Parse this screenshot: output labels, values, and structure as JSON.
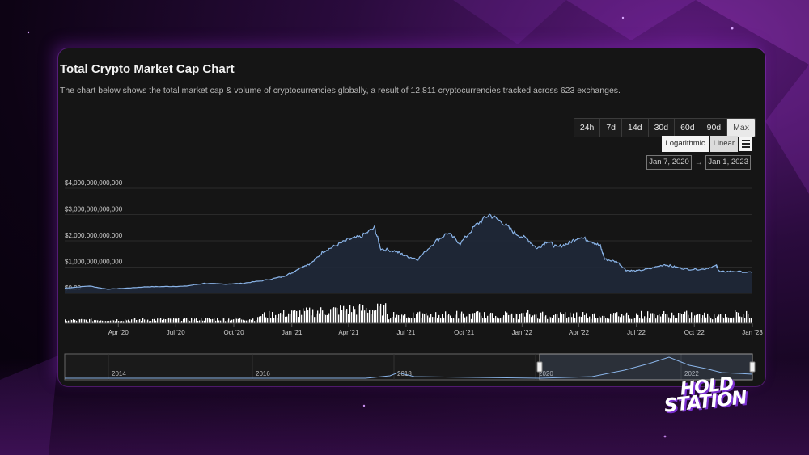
{
  "header": {
    "title": "Total Crypto Market Cap Chart",
    "subtitle": "The chart below shows the total market cap & volume of cryptocurrencies globally, a result of 12,811 cryptocurrencies tracked across 623 exchanges."
  },
  "range_buttons": [
    {
      "label": "24h",
      "active": false
    },
    {
      "label": "7d",
      "active": false
    },
    {
      "label": "14d",
      "active": false
    },
    {
      "label": "30d",
      "active": false
    },
    {
      "label": "60d",
      "active": false
    },
    {
      "label": "90d",
      "active": false
    },
    {
      "label": "Max",
      "active": true
    }
  ],
  "scale_buttons": {
    "logarithmic": "Logarithmic",
    "linear": "Linear",
    "active": "linear"
  },
  "date_range": {
    "from": "Jan 7, 2020",
    "arrow": "→",
    "to": "Jan 1, 2023"
  },
  "logo": {
    "line1": "HOLD",
    "line2": "STATION"
  },
  "colors": {
    "line": "#8ab4e8",
    "area": "#1f2838",
    "volume": "#ffffff",
    "grid": "#2a2a2a",
    "text": "#cfcfcf"
  },
  "chart_data": {
    "type": "line",
    "title": "Total Crypto Market Cap Chart",
    "y_ticks": [
      {
        "value": 0,
        "label": "$0.00"
      },
      {
        "value": 1000000000000,
        "label": "$1,000,000,000,000"
      },
      {
        "value": 2000000000000,
        "label": "$2,000,000,000,000"
      },
      {
        "value": 3000000000000,
        "label": "$3,000,000,000,000"
      },
      {
        "value": 4000000000000,
        "label": "$4,000,000,000,000"
      }
    ],
    "ylim": [
      0,
      4000000000000
    ],
    "x_range": [
      "2020-01-07",
      "2023-01-01"
    ],
    "x_ticks": [
      {
        "date": "2020-04-01",
        "label": "Apr '20"
      },
      {
        "date": "2020-07-01",
        "label": "Jul '20"
      },
      {
        "date": "2020-10-01",
        "label": "Oct '20"
      },
      {
        "date": "2021-01-01",
        "label": "Jan '21"
      },
      {
        "date": "2021-04-01",
        "label": "Apr '21"
      },
      {
        "date": "2021-07-01",
        "label": "Jul '21"
      },
      {
        "date": "2021-10-01",
        "label": "Oct '21"
      },
      {
        "date": "2022-01-01",
        "label": "Jan '22"
      },
      {
        "date": "2022-04-01",
        "label": "Apr '22"
      },
      {
        "date": "2022-07-01",
        "label": "Jul '22"
      },
      {
        "date": "2022-10-01",
        "label": "Oct '22"
      },
      {
        "date": "2023-01-01",
        "label": "Jan '23"
      }
    ],
    "series": [
      {
        "name": "Market Cap",
        "points": [
          [
            "2020-01-07",
            200000000000.0
          ],
          [
            "2020-02-15",
            280000000000.0
          ],
          [
            "2020-03-15",
            160000000000.0
          ],
          [
            "2020-04-15",
            200000000000.0
          ],
          [
            "2020-05-15",
            250000000000.0
          ],
          [
            "2020-06-15",
            260000000000.0
          ],
          [
            "2020-07-15",
            270000000000.0
          ],
          [
            "2020-08-15",
            380000000000.0
          ],
          [
            "2020-09-15",
            350000000000.0
          ],
          [
            "2020-10-15",
            380000000000.0
          ],
          [
            "2020-11-15",
            480000000000.0
          ],
          [
            "2020-12-15",
            620000000000.0
          ],
          [
            "2021-01-01",
            780000000000.0
          ],
          [
            "2021-01-15",
            1000000000000.0
          ],
          [
            "2021-02-01",
            1150000000000.0
          ],
          [
            "2021-02-20",
            1600000000000.0
          ],
          [
            "2021-03-10",
            1800000000000.0
          ],
          [
            "2021-04-01",
            2050000000000.0
          ],
          [
            "2021-04-20",
            2150000000000.0
          ],
          [
            "2021-05-12",
            2500000000000.0
          ],
          [
            "2021-05-22",
            1700000000000.0
          ],
          [
            "2021-06-15",
            1600000000000.0
          ],
          [
            "2021-07-01",
            1420000000000.0
          ],
          [
            "2021-07-20",
            1300000000000.0
          ],
          [
            "2021-08-15",
            1950000000000.0
          ],
          [
            "2021-09-05",
            2300000000000.0
          ],
          [
            "2021-09-25",
            1900000000000.0
          ],
          [
            "2021-10-20",
            2600000000000.0
          ],
          [
            "2021-11-10",
            3000000000000.0
          ],
          [
            "2021-12-01",
            2700000000000.0
          ],
          [
            "2021-12-20",
            2300000000000.0
          ],
          [
            "2022-01-10",
            2050000000000.0
          ],
          [
            "2022-01-25",
            1700000000000.0
          ],
          [
            "2022-02-10",
            2000000000000.0
          ],
          [
            "2022-02-25",
            1750000000000.0
          ],
          [
            "2022-03-15",
            1900000000000.0
          ],
          [
            "2022-04-01",
            2150000000000.0
          ],
          [
            "2022-04-20",
            2000000000000.0
          ],
          [
            "2022-05-05",
            1800000000000.0
          ],
          [
            "2022-05-12",
            1300000000000.0
          ],
          [
            "2022-06-01",
            1200000000000.0
          ],
          [
            "2022-06-15",
            880000000000.0
          ],
          [
            "2022-07-01",
            850000000000.0
          ],
          [
            "2022-07-25",
            950000000000.0
          ],
          [
            "2022-08-15",
            1100000000000.0
          ],
          [
            "2022-09-01",
            1000000000000.0
          ],
          [
            "2022-09-20",
            920000000000.0
          ],
          [
            "2022-10-15",
            920000000000.0
          ],
          [
            "2022-11-05",
            1050000000000.0
          ],
          [
            "2022-11-10",
            820000000000.0
          ],
          [
            "2022-12-01",
            840000000000.0
          ],
          [
            "2023-01-01",
            790000000000.0
          ]
        ]
      }
    ],
    "navigator": {
      "labels": [
        "2014",
        "2016",
        "2018",
        "2020",
        "2022"
      ],
      "selected_from": "2020-01-07",
      "selected_to": "2023-01-01"
    },
    "grid": true,
    "legend": "none"
  }
}
